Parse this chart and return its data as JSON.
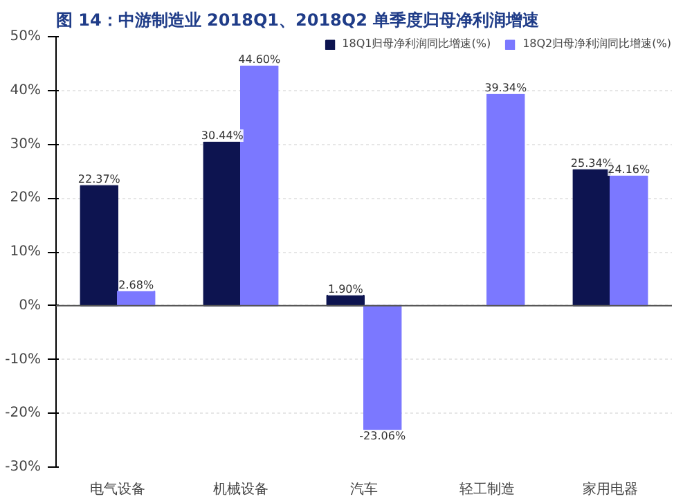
{
  "chart_data": {
    "type": "bar",
    "title": "图 14：中游制造业 2018Q1、2018Q2 单季度归母净利润增速",
    "categories": [
      "电气设备",
      "机械设备",
      "汽车",
      "轻工制造",
      "家用电器"
    ],
    "series": [
      {
        "name": "18Q1归母净利润同比增速(%)",
        "color": "#0d1450",
        "values": [
          22.37,
          30.44,
          1.9,
          null,
          25.34
        ],
        "value_labels": [
          "22.37%",
          "30.44%",
          "1.90%",
          null,
          "25.34%"
        ]
      },
      {
        "name": "18Q2归母净利润同比增速(%)",
        "color": "#7b78ff",
        "values": [
          2.68,
          44.6,
          -23.06,
          39.34,
          24.16
        ],
        "value_labels": [
          "2.68%",
          "44.60%",
          "-23.06%",
          "39.34%",
          "24.16%"
        ]
      }
    ],
    "ylim": [
      -30,
      50
    ],
    "yticks": [
      {
        "value": -30,
        "label": "-30%"
      },
      {
        "value": -20,
        "label": "-20%"
      },
      {
        "value": -10,
        "label": "-10%"
      },
      {
        "value": 0,
        "label": "0%"
      },
      {
        "value": 10,
        "label": "10%"
      },
      {
        "value": 20,
        "label": "20%"
      },
      {
        "value": 30,
        "label": "30%"
      },
      {
        "value": 40,
        "label": "40%"
      },
      {
        "value": 50,
        "label": "50%"
      }
    ],
    "legend": "top",
    "grid": "y"
  }
}
